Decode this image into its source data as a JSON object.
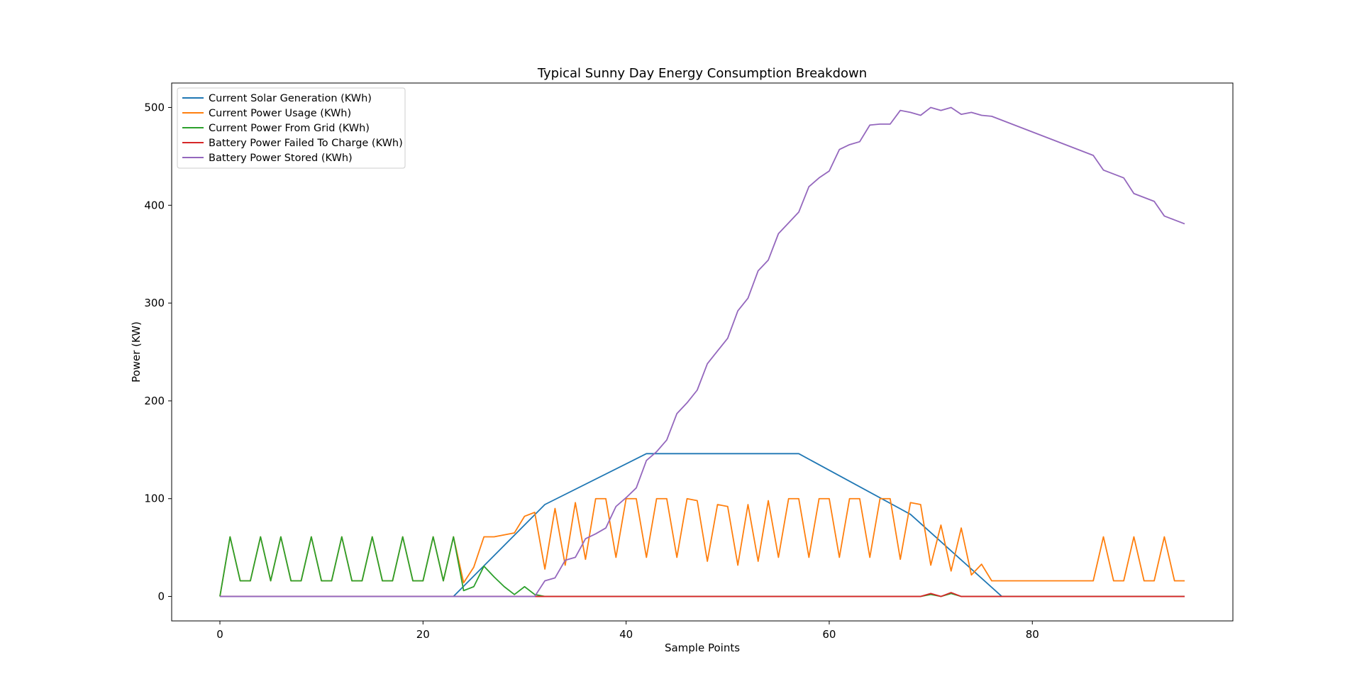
{
  "chart_data": {
    "type": "line",
    "title": "Typical Sunny Day Energy Consumption Breakdown",
    "xlabel": "Sample Points",
    "ylabel": "Power (KW)",
    "xlim": [
      -4.75,
      99.75
    ],
    "ylim": [
      -25,
      525
    ],
    "xticks": [
      0,
      20,
      40,
      60,
      80
    ],
    "yticks": [
      0,
      100,
      200,
      300,
      400,
      500
    ],
    "grid": false,
    "legend_position": "top-left",
    "series": [
      {
        "name": "Current Solar Generation (KWh)",
        "color": "#1f77b4",
        "x": [
          0,
          23,
          32,
          42,
          57,
          68,
          77,
          95
        ],
        "y": [
          0,
          0,
          94,
          146,
          146,
          84,
          0,
          0
        ]
      },
      {
        "name": "Current Power Usage (KWh)",
        "color": "#ff7f0e",
        "x": [
          0,
          1,
          2,
          3,
          4,
          5,
          6,
          7,
          8,
          9,
          10,
          11,
          12,
          13,
          14,
          15,
          16,
          17,
          18,
          19,
          20,
          21,
          22,
          23,
          24,
          25,
          26,
          27,
          28,
          29,
          30,
          31,
          32,
          33,
          34,
          35,
          36,
          37,
          38,
          39,
          40,
          41,
          42,
          43,
          44,
          45,
          46,
          47,
          48,
          49,
          50,
          51,
          52,
          53,
          54,
          55,
          56,
          57,
          58,
          59,
          60,
          61,
          62,
          63,
          64,
          65,
          66,
          67,
          68,
          69,
          70,
          71,
          72,
          73,
          74,
          75,
          76,
          77,
          78,
          79,
          80,
          81,
          82,
          83,
          84,
          85,
          86,
          87,
          88,
          89,
          90,
          91,
          92,
          93,
          94,
          95
        ],
        "y": [
          0,
          61,
          16,
          16,
          61,
          16,
          61,
          16,
          16,
          61,
          16,
          16,
          61,
          16,
          16,
          61,
          16,
          16,
          61,
          16,
          16,
          61,
          16,
          61,
          14,
          30,
          61,
          61,
          63,
          65,
          82,
          86,
          28,
          90,
          32,
          96,
          38,
          100,
          100,
          40,
          100,
          100,
          40,
          100,
          100,
          40,
          100,
          98,
          36,
          94,
          92,
          32,
          94,
          36,
          98,
          40,
          100,
          100,
          40,
          100,
          100,
          40,
          100,
          100,
          40,
          100,
          100,
          38,
          96,
          94,
          32,
          73,
          26,
          70,
          22,
          33,
          16,
          16,
          16,
          16,
          16,
          16,
          16,
          16,
          16,
          16,
          16,
          61,
          16,
          16,
          61,
          16,
          16,
          61,
          16,
          16
        ]
      },
      {
        "name": "Current Power From Grid (KWh)",
        "color": "#2ca02c",
        "x": [
          0,
          1,
          2,
          3,
          4,
          5,
          6,
          7,
          8,
          9,
          10,
          11,
          12,
          13,
          14,
          15,
          16,
          17,
          18,
          19,
          20,
          21,
          22,
          23,
          24,
          25,
          26,
          27,
          28,
          29,
          30,
          31,
          32,
          33,
          69,
          70,
          71,
          72,
          73,
          95
        ],
        "y": [
          0,
          61,
          16,
          16,
          61,
          16,
          61,
          16,
          16,
          61,
          16,
          16,
          61,
          16,
          16,
          61,
          16,
          16,
          61,
          16,
          16,
          61,
          16,
          61,
          6,
          10,
          31,
          20,
          10,
          2,
          10,
          2,
          0,
          0,
          0,
          2,
          0,
          3,
          0,
          0
        ]
      },
      {
        "name": "Battery Power Failed To Charge (KWh)",
        "color": "#d62728",
        "x": [
          0,
          32,
          69,
          70,
          71,
          72,
          73,
          95
        ],
        "y": [
          0,
          0,
          0,
          3,
          0,
          4,
          0,
          0
        ]
      },
      {
        "name": "Battery Power Stored (KWh)",
        "color": "#9467bd",
        "x": [
          0,
          31,
          32,
          33,
          34,
          35,
          36,
          37,
          38,
          39,
          40,
          41,
          42,
          43,
          44,
          45,
          46,
          47,
          48,
          49,
          50,
          51,
          52,
          53,
          54,
          55,
          56,
          57,
          58,
          59,
          60,
          61,
          62,
          63,
          64,
          65,
          66,
          67,
          68,
          69,
          70,
          71,
          72,
          73,
          74,
          75,
          76,
          86,
          87,
          88,
          89,
          90,
          91,
          92,
          93,
          94,
          95
        ],
        "y": [
          0,
          0,
          16,
          19,
          37,
          40,
          59,
          64,
          70,
          92,
          101,
          111,
          139,
          148,
          160,
          187,
          198,
          211,
          238,
          251,
          264,
          292,
          305,
          333,
          344,
          371,
          382,
          393,
          419,
          428,
          435,
          457,
          462,
          465,
          482,
          483,
          483,
          497,
          495,
          492,
          500,
          497,
          500,
          493,
          495,
          492,
          491,
          451,
          436,
          432,
          428,
          412,
          408,
          404,
          389,
          385,
          381
        ]
      }
    ]
  }
}
